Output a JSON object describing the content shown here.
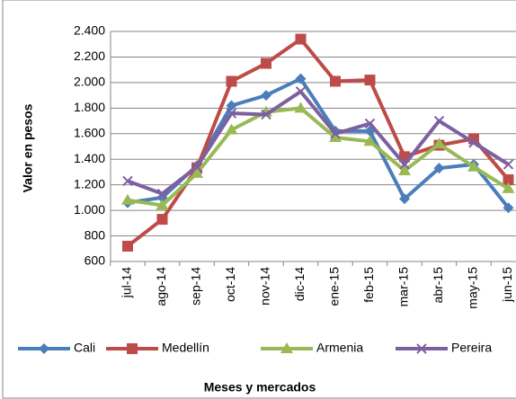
{
  "chart_data": {
    "type": "line",
    "categories": [
      "jul-14",
      "ago-14",
      "sep-14",
      "oct-14",
      "nov-14",
      "dic-14",
      "ene-15",
      "feb-15",
      "mar-15",
      "abr-15",
      "may-15",
      "jun-15"
    ],
    "series": [
      {
        "name": "Cali",
        "color": "#4a7ebb",
        "marker": "diamond",
        "values": [
          1060,
          1100,
          1350,
          1820,
          1900,
          2030,
          1620,
          1620,
          1090,
          1330,
          1360,
          1020
        ]
      },
      {
        "name": "Medellín",
        "color": "#be4b48",
        "marker": "square",
        "values": [
          720,
          930,
          1330,
          2010,
          2150,
          2340,
          2010,
          2020,
          1420,
          1510,
          1560,
          1240
        ]
      },
      {
        "name": "Armenia",
        "color": "#98b954",
        "marker": "triangle",
        "values": [
          1080,
          1040,
          1290,
          1630,
          1770,
          1800,
          1570,
          1540,
          1310,
          1520,
          1340,
          1170
        ]
      },
      {
        "name": "Pereira",
        "color": "#7d60a0",
        "marker": "x",
        "values": [
          1230,
          1130,
          1340,
          1760,
          1750,
          1930,
          1600,
          1680,
          1360,
          1700,
          1530,
          1360
        ]
      }
    ],
    "ylabel": "Valor en pesos",
    "xlabel": "Meses y mercados",
    "ylim": [
      600,
      2400
    ],
    "yticks": [
      {
        "value": 600,
        "label": "600"
      },
      {
        "value": 800,
        "label": "800"
      },
      {
        "value": 1000,
        "label": "1.000"
      },
      {
        "value": 1200,
        "label": "1.200"
      },
      {
        "value": 1400,
        "label": "1.400"
      },
      {
        "value": 1600,
        "label": "1.600"
      },
      {
        "value": 1800,
        "label": "1.800"
      },
      {
        "value": 2000,
        "label": "2.000"
      },
      {
        "value": 2200,
        "label": "2.200"
      },
      {
        "value": 2400,
        "label": "2.400"
      }
    ],
    "grid": true,
    "legend": "bottom"
  }
}
